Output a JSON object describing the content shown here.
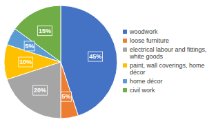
{
  "chart_data": {
    "type": "pie",
    "categories": [
      "woodwork",
      "loose furniture",
      "electrical labour and fittings, white goods",
      "paint, wall coverings, home décor",
      "home décor",
      "civil work"
    ],
    "values": [
      45,
      5,
      20,
      10,
      5,
      15
    ],
    "value_labels": [
      "45%",
      "5%",
      "20%",
      "10%",
      "5%",
      "15%"
    ],
    "colors": [
      "#4472c4",
      "#ed7d31",
      "#a5a5a5",
      "#ffc000",
      "#5b9bd5",
      "#70ad47"
    ],
    "legend": "right",
    "data_labels": true
  }
}
